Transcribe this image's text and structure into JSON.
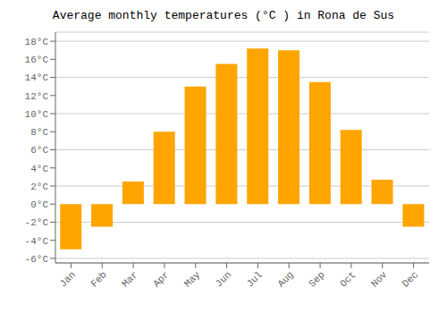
{
  "chart_data": {
    "type": "bar",
    "title": "Average monthly temperatures (°C ) in Rona de Sus",
    "categories": [
      "Jan",
      "Feb",
      "Mar",
      "Apr",
      "May",
      "Jun",
      "Jul",
      "Aug",
      "Sep",
      "Oct",
      "Nov",
      "Dec"
    ],
    "values": [
      -5.0,
      -2.5,
      2.5,
      8.0,
      13.0,
      15.5,
      17.2,
      17.0,
      13.5,
      8.2,
      2.7,
      -2.5
    ],
    "color": "#FFA500",
    "ylim": [
      -6.5,
      19.0
    ],
    "yticks": [
      {
        "value": -6,
        "label": "-6°C"
      },
      {
        "value": -4,
        "label": "-4°C"
      },
      {
        "value": -2,
        "label": "-2°C"
      },
      {
        "value": 0,
        "label": "0°C"
      },
      {
        "value": 2,
        "label": "2°C"
      },
      {
        "value": 4,
        "label": "4°C"
      },
      {
        "value": 6,
        "label": "6°C"
      },
      {
        "value": 8,
        "label": "8°C"
      },
      {
        "value": 10,
        "label": "10°C"
      },
      {
        "value": 12,
        "label": "12°C"
      },
      {
        "value": 14,
        "label": "14°C"
      },
      {
        "value": 16,
        "label": "16°C"
      },
      {
        "value": 18,
        "label": "18°C"
      }
    ],
    "grid": true
  }
}
